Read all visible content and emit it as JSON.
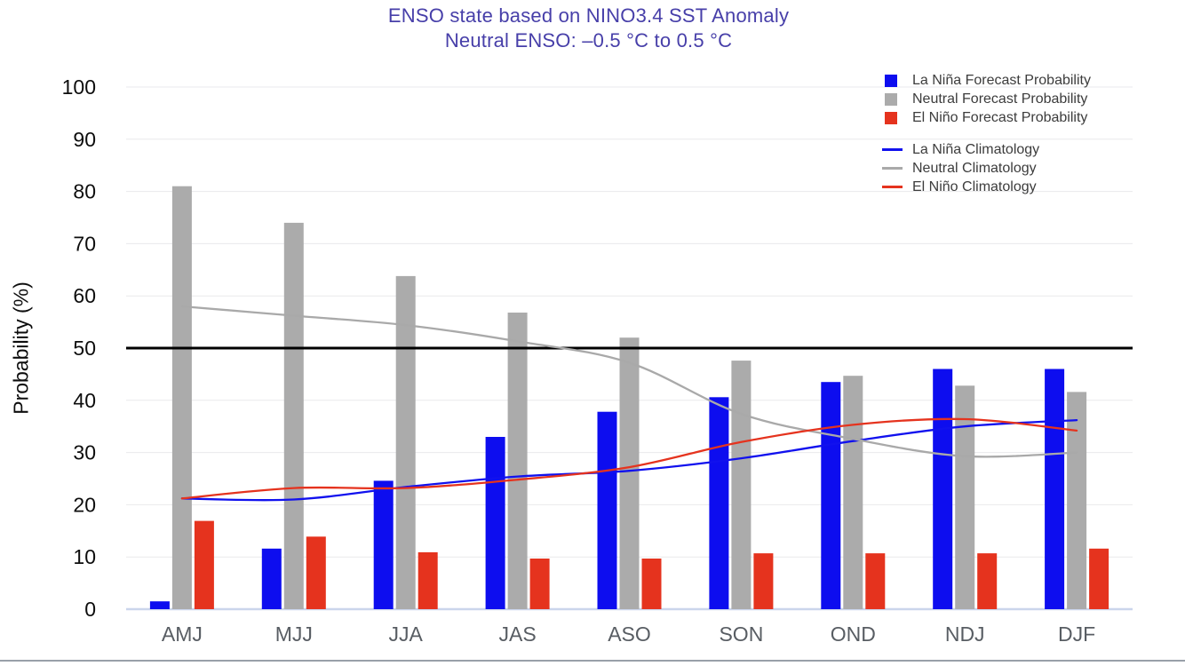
{
  "chart_data": {
    "type": "bar",
    "title": "ENSO state based on NINO3.4 SST Anomaly",
    "subtitle": "Neutral ENSO: –0.5 °C to 0.5 °C",
    "title_color": "#473FA9",
    "ylabel": "Probability (%)",
    "ylim": [
      0,
      100
    ],
    "yticks": [
      0,
      10,
      20,
      30,
      40,
      50,
      60,
      70,
      80,
      90,
      100
    ],
    "grid": true,
    "legend_position": "top-right",
    "categories": [
      "AMJ",
      "MJJ",
      "JJA",
      "JAS",
      "ASO",
      "SON",
      "OND",
      "NDJ",
      "DJF"
    ],
    "bar_series": [
      {
        "name": "La Niña Forecast Probability",
        "color": "#0D0DEF",
        "values": [
          1.5,
          11.6,
          24.6,
          33.0,
          37.8,
          40.6,
          43.5,
          46.0,
          46.0
        ]
      },
      {
        "name": "Neutral Forecast Probability",
        "color": "#ABABAB",
        "values": [
          81.0,
          74.0,
          63.8,
          56.8,
          52.0,
          47.6,
          44.7,
          42.8,
          41.6
        ]
      },
      {
        "name": "El Niño Forecast Probability",
        "color": "#E5331E",
        "values": [
          16.9,
          13.9,
          10.9,
          9.7,
          9.7,
          10.7,
          10.7,
          10.7,
          11.6
        ]
      }
    ],
    "line_series": [
      {
        "name": "La Niña Climatology",
        "color": "#1111EE",
        "values": [
          21.2,
          21.0,
          23.4,
          25.4,
          26.5,
          28.9,
          32.2,
          35.0,
          36.2
        ]
      },
      {
        "name": "Neutral Climatology",
        "color": "#A9A9A9",
        "values": [
          58.0,
          56.2,
          54.4,
          51.3,
          47.2,
          37.4,
          32.6,
          29.3,
          30.0
        ]
      },
      {
        "name": "El Niño Climatology",
        "color": "#E5331E",
        "values": [
          21.2,
          23.2,
          23.2,
          24.8,
          27.2,
          32.0,
          35.3,
          36.4,
          34.2
        ]
      }
    ],
    "reference_line": {
      "value": 50,
      "color": "#000000"
    },
    "colors": {
      "grid": "#E9E9EC",
      "baseline": "#CBD5EC",
      "y_tick_text": "#0D0D0D",
      "x_tick_text": "#585D63",
      "legend_text": "#3C3C3C"
    }
  }
}
